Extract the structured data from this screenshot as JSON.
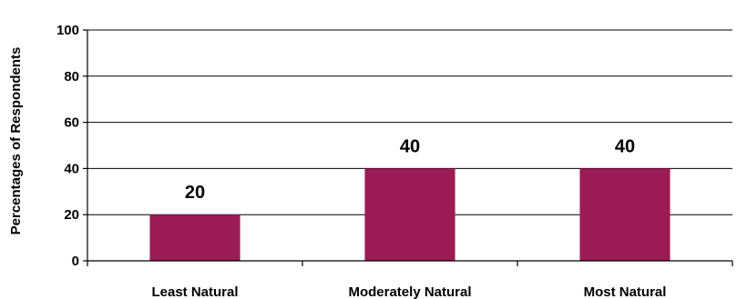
{
  "chart_data": {
    "type": "bar",
    "title": "",
    "xlabel": "",
    "ylabel": "Percentages of Respondents",
    "categories": [
      "Least Natural",
      "Moderately Natural",
      "Most Natural"
    ],
    "values": [
      20,
      40,
      40
    ],
    "data_labels": [
      "20",
      "40",
      "40"
    ],
    "ylim": [
      0,
      100
    ],
    "yticks": [
      0,
      20,
      40,
      60,
      80,
      100
    ],
    "ytick_labels": [
      "0",
      "20",
      "40",
      "60",
      "80",
      "100"
    ],
    "grid": true,
    "legend": "none",
    "bar_color": "#9B1B55"
  }
}
